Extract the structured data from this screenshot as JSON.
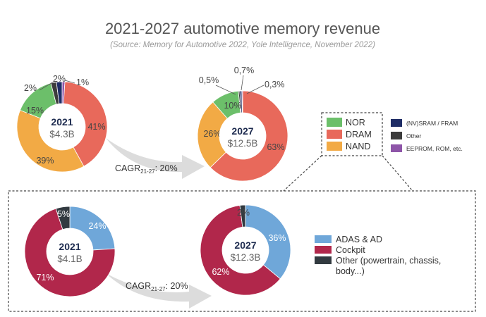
{
  "title": "2021-2027 automotive memory revenue",
  "subtitle": "(Source: Memory for Automotive 2022, Yole Intelligence, November 2022)",
  "colors": {
    "NOR": "#6cbf6a",
    "DRAM": "#e8695b",
    "NAND": "#f2aa45",
    "NVSRAM": "#1f2d66",
    "OtherTech": "#3c3c3c",
    "EEPROM": "#8e55a8",
    "ADAS": "#6fa7d9",
    "Cockpit": "#b1274b",
    "OtherApp": "#323a40"
  },
  "legend_tech": {
    "main": [
      "NOR",
      "DRAM",
      "NAND"
    ],
    "minor": [
      "(NV)SRAM / FRAM",
      "Other",
      "EEPROM, ROM, etc."
    ]
  },
  "legend_app": {
    "items": [
      "ADAS & AD",
      "Cockpit",
      "Other (powertrain, chassis,",
      "body...)"
    ]
  },
  "cagr": {
    "top": {
      "prefix": "CAGR",
      "sub": "21-27",
      "suffix": ": 20%"
    },
    "bottom": {
      "prefix": "CAGR",
      "sub": "21-27",
      "suffix": ": 20%"
    }
  },
  "chart_data": [
    {
      "type": "pie",
      "year": "2021",
      "total": "$4.3B",
      "slices": [
        {
          "name": "DRAM",
          "value": 41,
          "label": "41%"
        },
        {
          "name": "NAND",
          "value": 39,
          "label": "39%"
        },
        {
          "name": "NOR",
          "value": 15,
          "label": "15%"
        },
        {
          "name": "(NV)SRAM / FRAM",
          "value": 2,
          "label": "2%"
        },
        {
          "name": "Other",
          "value": 2,
          "label": "2%"
        },
        {
          "name": "EEPROM, ROM, etc.",
          "value": 1,
          "label": "1%"
        }
      ]
    },
    {
      "type": "pie",
      "year": "2027",
      "total": "$12.5B",
      "slices": [
        {
          "name": "DRAM",
          "value": 63,
          "label": "63%"
        },
        {
          "name": "NAND",
          "value": 26,
          "label": "26%"
        },
        {
          "name": "NOR",
          "value": 10,
          "label": "10%"
        },
        {
          "name": "Other",
          "value": 0.5,
          "label": "0,5%"
        },
        {
          "name": "(NV)SRAM / FRAM",
          "value": 0.7,
          "label": "0,7%"
        },
        {
          "name": "EEPROM, ROM, etc.",
          "value": 0.3,
          "label": "0,3%"
        }
      ]
    },
    {
      "type": "pie",
      "year": "2021",
      "total": "$4.1B",
      "slices": [
        {
          "name": "ADAS & AD",
          "value": 24,
          "label": "24%"
        },
        {
          "name": "Cockpit",
          "value": 71,
          "label": "71%"
        },
        {
          "name": "Other (powertrain, chassis, body...)",
          "value": 5,
          "label": "5%"
        }
      ]
    },
    {
      "type": "pie",
      "year": "2027",
      "total": "$12.3B",
      "slices": [
        {
          "name": "ADAS & AD",
          "value": 36,
          "label": "36%"
        },
        {
          "name": "Cockpit",
          "value": 62,
          "label": "62%"
        },
        {
          "name": "Other (powertrain, chassis, body...)",
          "value": 2,
          "label": "2%"
        }
      ]
    }
  ]
}
